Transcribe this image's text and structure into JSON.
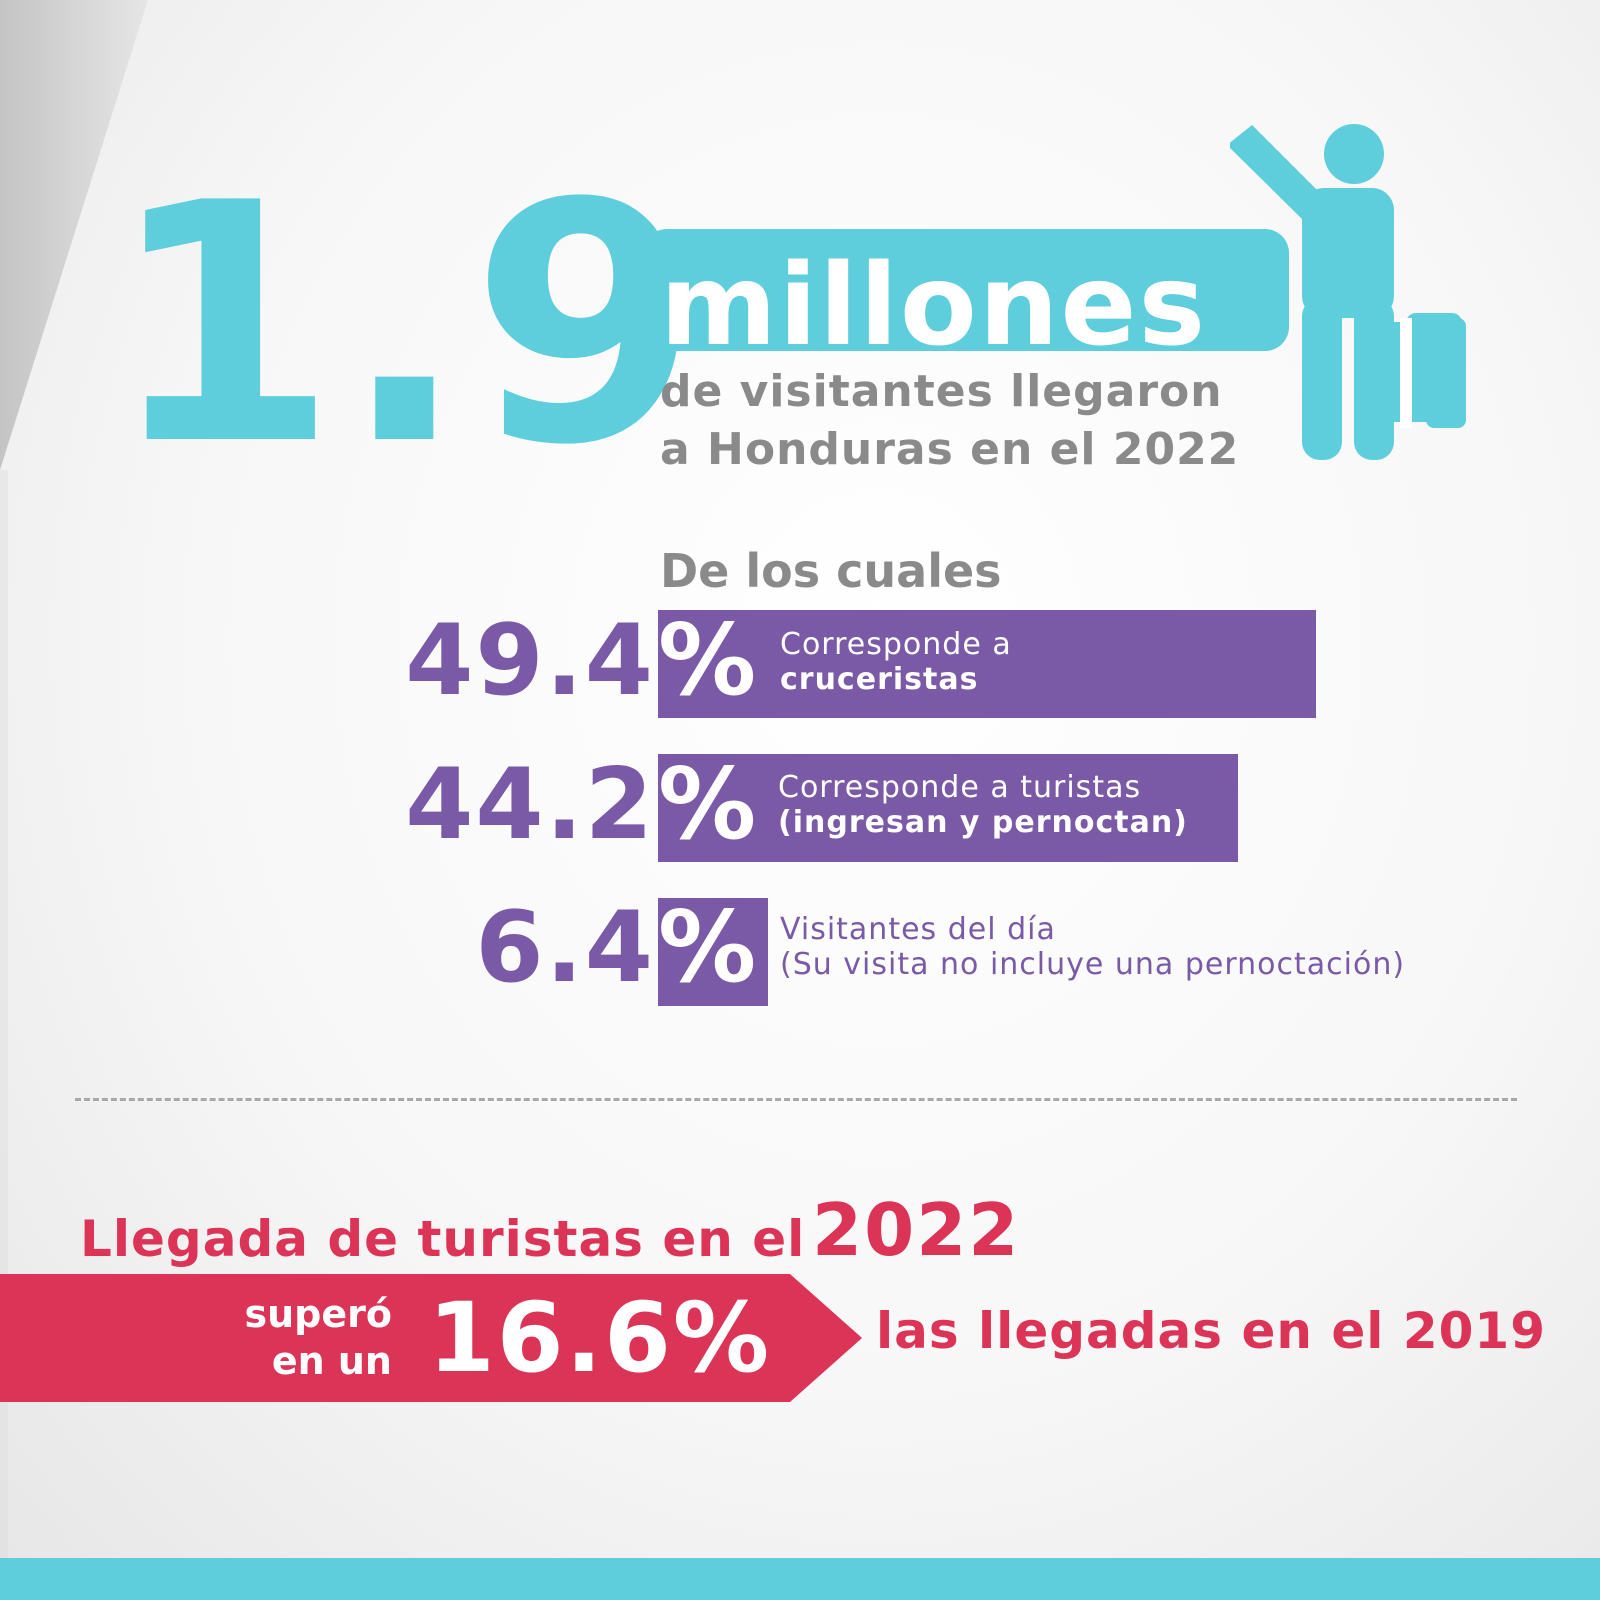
{
  "hero": {
    "number": "1.9",
    "unit": "millones",
    "subtitle_line1": "de visitantes llegaron",
    "subtitle_line2": "a Honduras en el 2022"
  },
  "breakdown": {
    "heading": "De los cuales",
    "items": [
      {
        "value": "49.4",
        "percent_sign": "%",
        "line1": "Corresponde a",
        "line2": "cruceristas"
      },
      {
        "value": "44.2",
        "percent_sign": "%",
        "line1": "Corresponde a turistas",
        "line2": "(ingresan y pernoctan)"
      },
      {
        "value": "6.4",
        "percent_sign": "%",
        "line1": "Visitantes del día",
        "line2": "(Su visita no incluye una pernoctación)"
      }
    ]
  },
  "comparison": {
    "title": "Llegada de turistas en el",
    "year": "2022",
    "banner_small_line1": "superó",
    "banner_small_line2": "en un",
    "banner_big": "16.6%",
    "tail": "las llegadas en el 2019"
  },
  "icons": {
    "person": "traveler-with-suitcase-icon"
  },
  "colors": {
    "teal": "#5ecedc",
    "purple": "#7a5aa6",
    "red": "#dc3456",
    "gray_text": "#8a8a8a"
  }
}
